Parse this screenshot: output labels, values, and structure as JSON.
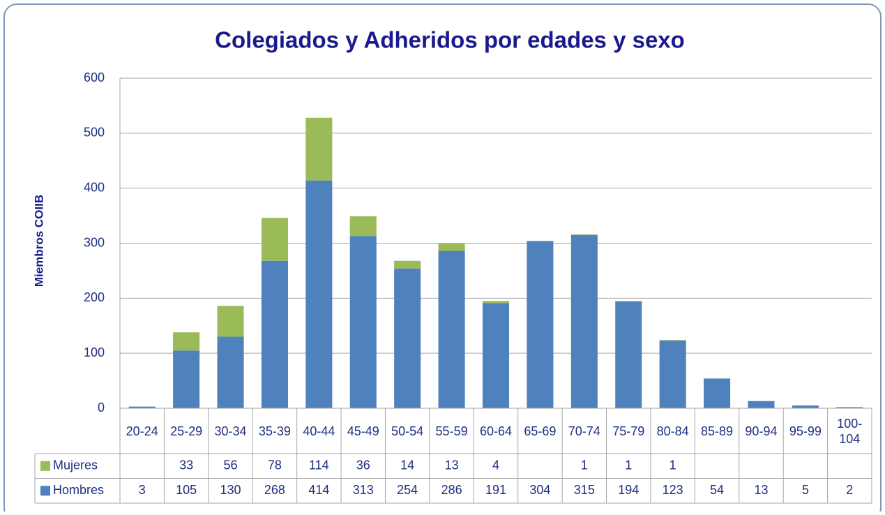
{
  "chart_data": {
    "type": "stacked_bar",
    "title": "Colegiados y Adheridos por edades y sexo",
    "y_label": "Miembros COIIB",
    "categories": [
      "20-24",
      "25-29",
      "30-34",
      "35-39",
      "40-44",
      "45-49",
      "50-54",
      "55-59",
      "60-64",
      "65-69",
      "70-74",
      "75-79",
      "80-84",
      "85-89",
      "90-94",
      "95-99",
      "100-104"
    ],
    "series": [
      {
        "name": "Mujeres",
        "color": "#9bbb59",
        "values": [
          null,
          33,
          56,
          78,
          114,
          36,
          14,
          13,
          4,
          null,
          1,
          1,
          1,
          null,
          null,
          null,
          null
        ]
      },
      {
        "name": "Hombres",
        "color": "#4f81bd",
        "values": [
          3,
          105,
          130,
          268,
          414,
          313,
          254,
          286,
          191,
          304,
          315,
          194,
          123,
          54,
          13,
          5,
          2
        ]
      }
    ],
    "ylim": [
      0,
      600
    ],
    "yticks": [
      0,
      100,
      200,
      300,
      400,
      500,
      600
    ],
    "grid": true,
    "legend": "data-table"
  }
}
